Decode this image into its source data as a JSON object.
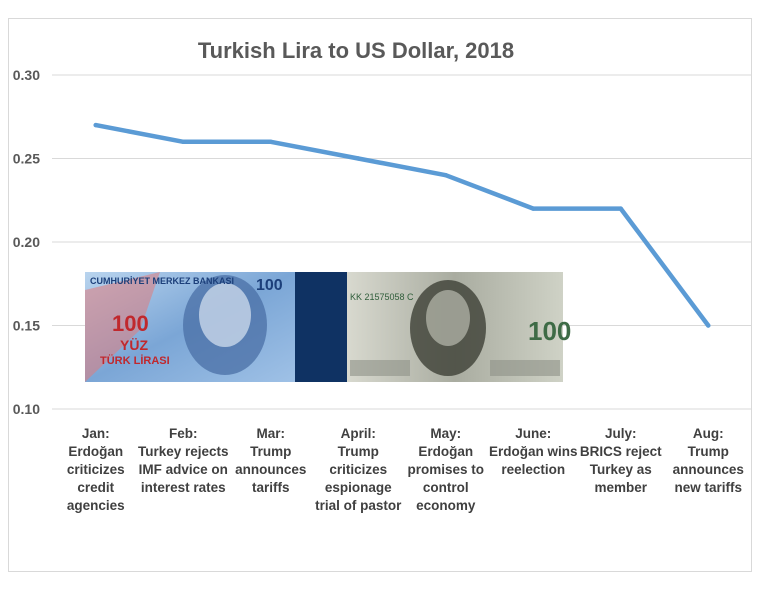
{
  "chart_data": {
    "type": "line",
    "title": "Turkish Lira to US Dollar, 2018",
    "categories": [
      "Jan: Erdoğan criticizes credit agencies",
      "Feb: Turkey rejects IMF advice on interest rates",
      "Mar: Trump announces tariffs",
      "April: Trump criticizes espionage trial of pastor",
      "May: Erdoğan promises to control economy",
      "June: Erdoğan wins reelection",
      "July: BRICS reject Turkey as member",
      "Aug: Trump announces new tariffs"
    ],
    "category_lines": [
      [
        "Jan:",
        "Erdoğan",
        "criticizes",
        "credit",
        "agencies"
      ],
      [
        "Feb:",
        "Turkey rejects",
        "IMF advice on",
        "interest rates"
      ],
      [
        "Mar:",
        "Trump",
        "announces",
        "tariffs"
      ],
      [
        "April:",
        "Trump",
        "criticizes",
        "espionage",
        "trial of pastor"
      ],
      [
        "May:",
        "Erdoğan",
        "promises to",
        "control",
        "economy"
      ],
      [
        "June:",
        "Erdoğan wins",
        "reelection"
      ],
      [
        "July:",
        "BRICS reject",
        "Turkey as",
        "member"
      ],
      [
        "Aug:",
        "Trump",
        "announces",
        "new tariffs"
      ]
    ],
    "values": [
      0.27,
      0.26,
      0.26,
      0.25,
      0.24,
      0.22,
      0.22,
      0.15
    ],
    "ylim": [
      0.1,
      0.3
    ],
    "yticks": [
      "0.10",
      "0.15",
      "0.20",
      "0.25",
      "0.30"
    ],
    "grid": true,
    "line_color": "#5b9bd5"
  },
  "banknote": {
    "lira_header": "CUMHURİYET MERKEZ BANKASI",
    "lira_denomination": "100",
    "lira_words": "YÜZ",
    "lira_currency": "TÜRK LİRASI",
    "dollar_serial": "KK 21575058 C",
    "dollar_denomination": "100"
  }
}
